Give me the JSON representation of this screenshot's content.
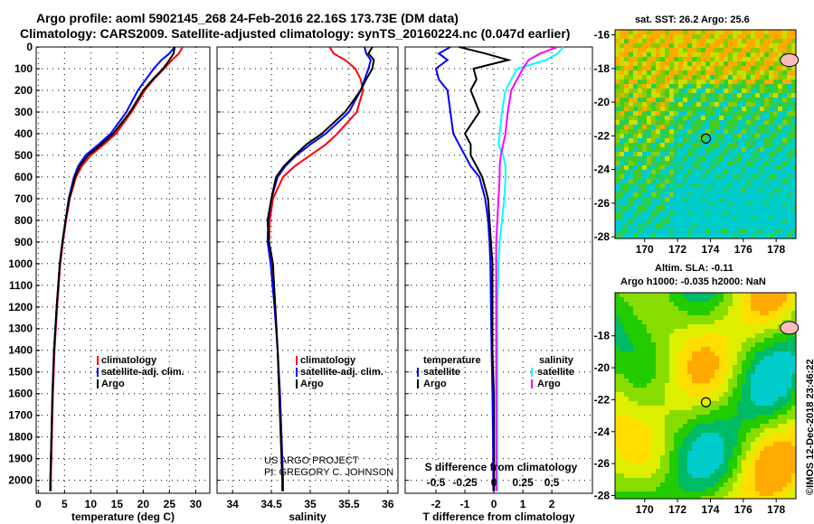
{
  "header": {
    "title1": "Argo profile: aoml 5902145_268 24-Feb-2016 22.16S 173.73E (DM data)",
    "title2": "Climatology: CARS2009. Satellite-adjusted climatology: synTS_20160224.nc (0.047d earlier)"
  },
  "credit": {
    "line1": "US ARGO PROJECT",
    "line2": "PI: GREGORY C. JOHNSON"
  },
  "timestamp": "©IMOS 12-Dec-2018 23:46:22",
  "colors": {
    "climatology": "#ff0000",
    "satellite": "#0000ff",
    "argo": "#000000",
    "s_satellite": "#00ffff",
    "s_argo": "#ff00ff"
  },
  "chart_data": [
    {
      "type": "line",
      "xlabel": "temperature (deg C)",
      "xlim": [
        -0.4,
        32.7
      ],
      "ylim": [
        2060,
        0
      ],
      "xticks": [
        0,
        5,
        10,
        15,
        20,
        25,
        30
      ],
      "yticks": [
        0,
        100,
        200,
        300,
        400,
        500,
        600,
        700,
        800,
        900,
        1000,
        1100,
        1200,
        1300,
        1400,
        1500,
        1600,
        1700,
        1800,
        1900,
        2000
      ],
      "depth": [
        0,
        30,
        60,
        100,
        150,
        200,
        300,
        400,
        450,
        500,
        550,
        600,
        700,
        800,
        900,
        1000,
        1200,
        1400,
        1600,
        1800,
        2000,
        2050
      ],
      "legend": [
        "climatology",
        "satellite-adj. clim.",
        "Argo"
      ],
      "series": [
        {
          "name": "climatology",
          "color": "#ff0000",
          "values": [
            27.5,
            26.8,
            25.5,
            24,
            22,
            20.3,
            17.8,
            14.8,
            12.5,
            10,
            8.3,
            7.2,
            6,
            5.3,
            4.7,
            4.2,
            3.6,
            3.1,
            2.8,
            2.6,
            2.4,
            2.4
          ]
        },
        {
          "name": "satellite-adj. clim.",
          "color": "#0000ff",
          "values": [
            26,
            25,
            23.5,
            22,
            20.5,
            19,
            16.8,
            13.8,
            11.5,
            9,
            7.6,
            6.8,
            5.8,
            5.2,
            4.6,
            4.1,
            3.5,
            3.0,
            2.7,
            2.5,
            2.3,
            2.3
          ]
        },
        {
          "name": "Argo",
          "color": "#000000",
          "values": [
            26,
            25.8,
            25,
            23.8,
            21.8,
            20,
            17.5,
            14.3,
            12,
            9.5,
            7.9,
            7,
            5.9,
            5.2,
            4.6,
            4.1,
            3.5,
            3.0,
            2.7,
            2.5,
            2.3,
            2.3
          ]
        }
      ]
    },
    {
      "type": "line",
      "xlabel": "salinity",
      "xlim": [
        33.8,
        36.13
      ],
      "ylim": [
        2060,
        0
      ],
      "xticks": [
        34,
        34.5,
        35,
        35.5,
        36
      ],
      "depth": [
        0,
        30,
        60,
        100,
        150,
        200,
        300,
        400,
        450,
        500,
        550,
        600,
        700,
        800,
        900,
        1000,
        1200,
        1400,
        1600,
        1800,
        2000,
        2050
      ],
      "legend": [
        "climatology",
        "satellite-adj. clim.",
        "Argo"
      ],
      "series": [
        {
          "name": "climatology",
          "color": "#ff0000",
          "values": [
            35.25,
            35.3,
            35.45,
            35.58,
            35.65,
            35.68,
            35.6,
            35.35,
            35.2,
            35.0,
            34.8,
            34.65,
            34.52,
            34.48,
            34.47,
            34.5,
            34.55,
            34.58,
            34.61,
            34.63,
            34.65,
            34.65
          ]
        },
        {
          "name": "satellite-adj. clim.",
          "color": "#0000ff",
          "values": [
            35.7,
            35.72,
            35.78,
            35.75,
            35.7,
            35.65,
            35.5,
            35.2,
            35.0,
            34.82,
            34.68,
            34.58,
            34.5,
            34.46,
            34.45,
            34.49,
            34.54,
            34.58,
            34.61,
            34.63,
            34.65,
            34.65
          ]
        },
        {
          "name": "Argo",
          "color": "#000000",
          "values": [
            35.8,
            35.75,
            35.82,
            35.8,
            35.72,
            35.65,
            35.45,
            35.15,
            34.95,
            34.8,
            34.66,
            34.56,
            34.5,
            34.45,
            34.47,
            34.52,
            34.55,
            34.58,
            34.6,
            34.62,
            34.64,
            34.64
          ]
        }
      ]
    },
    {
      "type": "line",
      "xlabel": "T difference from climatology",
      "xlabel2": "S difference from climatology",
      "xlim": [
        -3.06,
        3.4
      ],
      "ylim": [
        2060,
        0
      ],
      "xticks": [
        -2,
        -1,
        0,
        1,
        2
      ],
      "xticks2": [
        "-0.5",
        "-0.25",
        "0",
        "0.25",
        "0.5"
      ],
      "depth": [
        0,
        30,
        60,
        100,
        150,
        200,
        300,
        400,
        450,
        500,
        550,
        600,
        700,
        800,
        900,
        1000,
        1200,
        1400,
        1600,
        1800,
        2000,
        2050
      ],
      "legend_t": {
        "title": "temperature",
        "items": [
          "satellite",
          "Argo"
        ]
      },
      "legend_s": {
        "title": "salinity",
        "items": [
          "satellite",
          "Argo"
        ]
      },
      "series": [
        {
          "name": "T satellite",
          "color": "#0000ff",
          "values": [
            -1.5,
            -1.9,
            -1.6,
            -2.0,
            -1.9,
            -1.6,
            -1.5,
            -1.4,
            -1.2,
            -1.0,
            -0.8,
            -0.5,
            -0.3,
            -0.2,
            -0.15,
            -0.12,
            -0.1,
            -0.08,
            -0.05,
            -0.03,
            -0.02,
            -0.02
          ]
        },
        {
          "name": "T Argo",
          "color": "#000000",
          "values": [
            -1.2,
            -0.3,
            0.5,
            -0.7,
            -0.6,
            -0.8,
            -0.5,
            -1.0,
            -0.8,
            -0.8,
            -0.6,
            -0.4,
            -0.2,
            -0.15,
            -0.1,
            -0.05,
            -0.05,
            -0.05,
            0,
            0,
            0,
            0
          ]
        },
        {
          "name": "S satellite",
          "color": "#00ffff",
          "values": [
            0.6,
            0.55,
            0.45,
            0.2,
            0.15,
            0.1,
            0.07,
            0.05,
            0.04,
            0.08,
            0.1,
            0.1,
            0.09,
            0.07,
            0.05,
            0.04,
            0.03,
            0.03,
            0.03,
            0.03,
            0.03,
            0.03
          ]
        },
        {
          "name": "S Argo",
          "color": "#ff00ff",
          "values": [
            0.55,
            0.4,
            0.3,
            0.25,
            0.2,
            0.15,
            0.12,
            0.1,
            0.08,
            0.06,
            0.05,
            0.05,
            0.04,
            0.03,
            0.02,
            0.02,
            0.02,
            0.02,
            0.02,
            0.02,
            0.02,
            0.02
          ]
        }
      ]
    },
    {
      "type": "heatmap",
      "title": "sat. SST: 26.2 Argo: 25.6",
      "xlim": [
        168.2,
        179.2
      ],
      "ylim": [
        -15.7,
        -28.1
      ],
      "xticks": [
        170,
        172,
        174,
        176,
        178
      ],
      "yticks": [
        -16,
        -18,
        -20,
        -22,
        -24,
        -26,
        -28
      ],
      "profile": [
        173.73,
        -22.16
      ],
      "palette": [
        "#00cccc",
        "#22cc66",
        "#44cc22",
        "#88cc00",
        "#ccdd00",
        "#ffaa00"
      ]
    },
    {
      "type": "heatmap",
      "title": "Altim. SLA: -0.11",
      "subtitle": "Argo h1000: -0.035 h2000: NaN",
      "xlim": [
        168.2,
        179.2
      ],
      "ylim": [
        -15.3,
        -28.2
      ],
      "xticks": [
        170,
        172,
        174,
        176,
        178
      ],
      "yticks": [
        -18,
        -20,
        -22,
        -24,
        -26,
        -28
      ],
      "profile": [
        173.73,
        -22.16
      ],
      "palette": [
        "#00cccc",
        "#00bb66",
        "#22cc00",
        "#88dd00",
        "#ddee00",
        "#ffdd00",
        "#ffaa00"
      ]
    }
  ]
}
